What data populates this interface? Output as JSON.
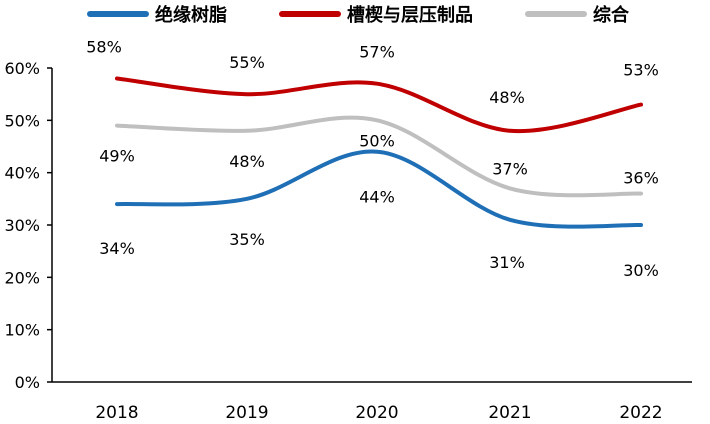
{
  "chart_data": {
    "type": "line",
    "title": "",
    "xlabel": "",
    "ylabel": "",
    "categories": [
      "2018",
      "2019",
      "2020",
      "2021",
      "2022"
    ],
    "ylim": [
      0,
      0.6
    ],
    "yticks": [
      "0%",
      "10%",
      "20%",
      "30%",
      "40%",
      "50%",
      "60%"
    ],
    "grid": false,
    "legend_position": "top",
    "series": [
      {
        "name": "绝缘树脂",
        "color": "#1F6FB7",
        "values": [
          0.34,
          0.35,
          0.44,
          0.31,
          0.3
        ],
        "labels": [
          "34%",
          "35%",
          "44%",
          "31%",
          "30%"
        ]
      },
      {
        "name": "槽楔与层压制品",
        "color": "#C00000",
        "values": [
          0.58,
          0.55,
          0.57,
          0.48,
          0.53
        ],
        "labels": [
          "58%",
          "55%",
          "57%",
          "48%",
          "53%"
        ]
      },
      {
        "name": "综合",
        "color": "#BFBFBF",
        "values": [
          0.49,
          0.48,
          0.5,
          0.37,
          0.36
        ],
        "labels": [
          "49%",
          "48%",
          "50%",
          "37%",
          "36%"
        ]
      }
    ]
  }
}
